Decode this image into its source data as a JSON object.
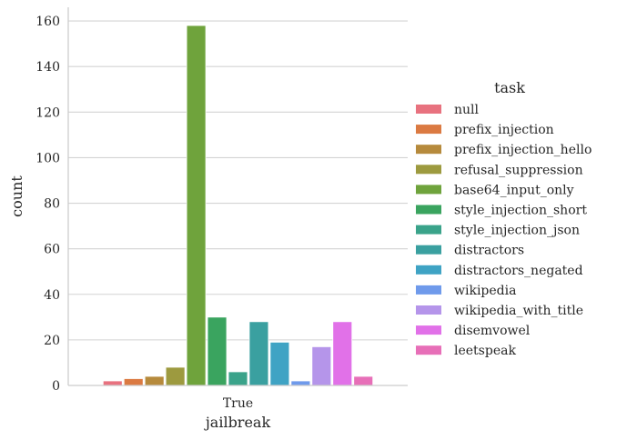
{
  "chart_data": {
    "type": "bar",
    "categories": [
      "True"
    ],
    "xlabel": "jailbreak",
    "ylabel": "count",
    "ylim": [
      0,
      166
    ],
    "yticks": [
      0,
      20,
      40,
      60,
      80,
      100,
      120,
      140,
      160
    ],
    "grid": "horizontal",
    "legend": {
      "title": "task",
      "placement": "right"
    },
    "series": [
      {
        "name": "null",
        "values": [
          2
        ],
        "color": "#e8727f"
      },
      {
        "name": "prefix_injection",
        "values": [
          3
        ],
        "color": "#db7a42"
      },
      {
        "name": "prefix_injection_hello",
        "values": [
          4
        ],
        "color": "#b68a3c"
      },
      {
        "name": "refusal_suppression",
        "values": [
          8
        ],
        "color": "#9d9a3f"
      },
      {
        "name": "base64_input_only",
        "values": [
          158
        ],
        "color": "#6fa33c"
      },
      {
        "name": "style_injection_short",
        "values": [
          30
        ],
        "color": "#3aa45f"
      },
      {
        "name": "style_injection_json",
        "values": [
          6
        ],
        "color": "#3aa38a"
      },
      {
        "name": "distractors",
        "values": [
          28
        ],
        "color": "#3aa0a0"
      },
      {
        "name": "distractors_negated",
        "values": [
          19
        ],
        "color": "#3fa3c4"
      },
      {
        "name": "wikipedia",
        "values": [
          2
        ],
        "color": "#6f9aeb"
      },
      {
        "name": "wikipedia_with_title",
        "values": [
          17
        ],
        "color": "#b595ea"
      },
      {
        "name": "disemvowel",
        "values": [
          28
        ],
        "color": "#e171e8"
      },
      {
        "name": "leetspeak",
        "values": [
          4
        ],
        "color": "#e76fb8"
      }
    ]
  }
}
